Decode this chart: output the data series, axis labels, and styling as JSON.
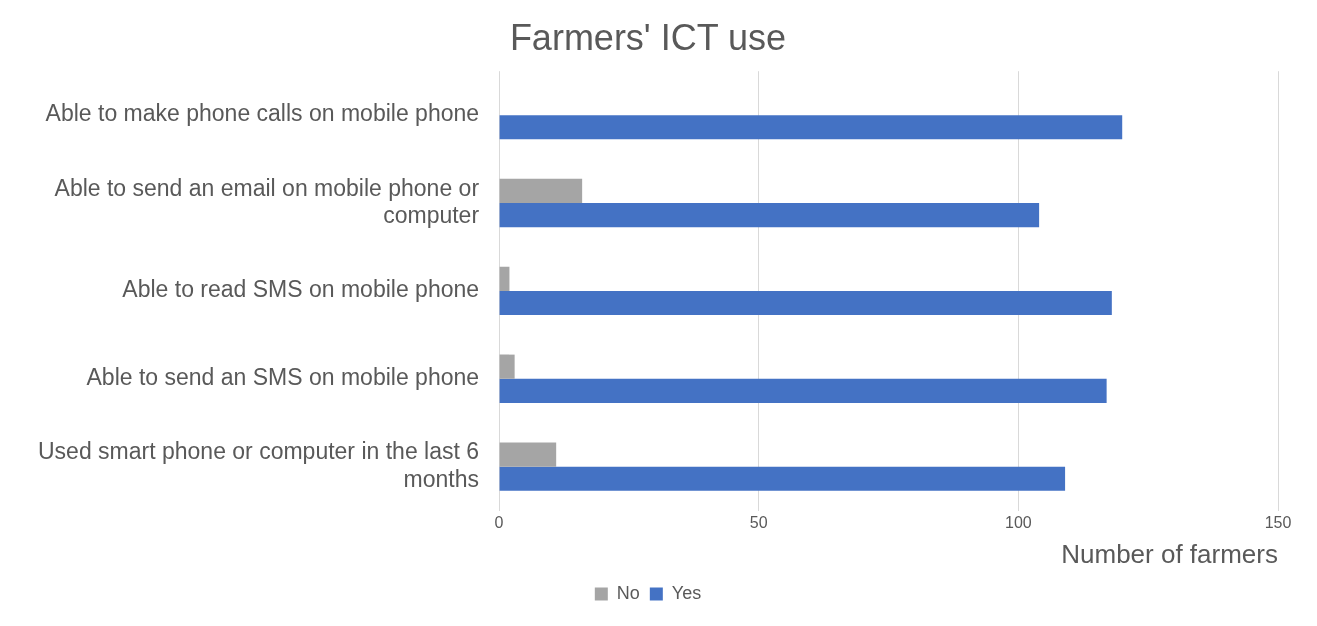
{
  "chart_data": {
    "type": "bar",
    "orientation": "horizontal",
    "title": "Farmers' ICT use",
    "xlabel": "Number of farmers",
    "categories": [
      "Able to make phone calls on mobile phone",
      "Able to send an email on mobile phone or computer",
      "Able to read SMS on mobile phone",
      "Able to send an SMS on mobile phone",
      "Used smart phone or computer in the last 6 months"
    ],
    "series": [
      {
        "name": "No",
        "color": "#a5a5a5",
        "values": [
          0,
          16,
          2,
          3,
          11
        ]
      },
      {
        "name": "Yes",
        "color": "#4472c4",
        "values": [
          120,
          104,
          118,
          117,
          109
        ]
      }
    ],
    "xlim": [
      0,
      150
    ],
    "xticks": [
      0,
      50,
      100,
      150
    ],
    "grid": "x",
    "legend": "bottom"
  }
}
